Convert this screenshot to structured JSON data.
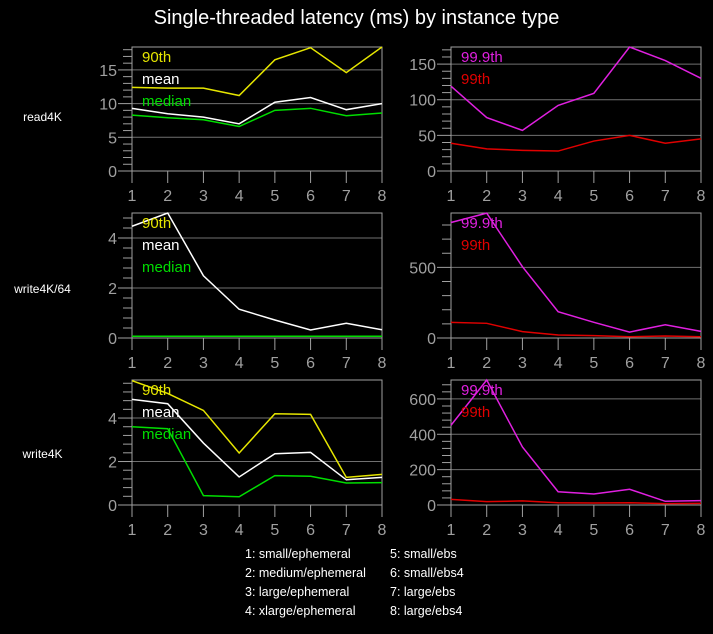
{
  "title": "Single-threaded latency (ms) by instance type",
  "colors": {
    "90th": "#e6e600",
    "mean": "#ffffff",
    "median": "#00dd00",
    "99.9th": "#e020e0",
    "99th": "#e00000",
    "axis": "#a0a0a0",
    "grid": "#707070"
  },
  "instance_key": [
    "1: small/ephemeral",
    "2: medium/ephemeral",
    "3: large/ephemeral",
    "4: xlarge/ephemeral",
    "5: small/ebs",
    "6: small/ebs4",
    "7: large/ebs",
    "8: large/ebs4"
  ],
  "row_labels": [
    "read4K",
    "write4K/64",
    "write4K"
  ],
  "chart_data": [
    {
      "type": "line",
      "row": "read4K",
      "column": "left",
      "x": [
        1,
        2,
        3,
        4,
        5,
        6,
        7,
        8
      ],
      "ylim": [
        0,
        18.4
      ],
      "yticks": [
        0,
        5,
        10,
        15
      ],
      "yminor": 1,
      "series": [
        {
          "name": "90th",
          "values": [
            12.4,
            12.3,
            12.3,
            11.2,
            16.5,
            18.3,
            14.6,
            18.7
          ]
        },
        {
          "name": "mean",
          "values": [
            9.3,
            8.5,
            8.0,
            7.0,
            10.2,
            10.9,
            9.1,
            10.0
          ]
        },
        {
          "name": "median",
          "values": [
            8.3,
            7.9,
            7.6,
            6.6,
            9.0,
            9.3,
            8.2,
            8.6
          ]
        }
      ]
    },
    {
      "type": "line",
      "row": "read4K",
      "column": "right",
      "x": [
        1,
        2,
        3,
        4,
        5,
        6,
        7,
        8
      ],
      "ylim": [
        0,
        174
      ],
      "yticks": [
        0,
        50,
        100,
        150
      ],
      "yminor": 10,
      "series": [
        {
          "name": "99.9th",
          "values": [
            119,
            75,
            57,
            92,
            109,
            176,
            155,
            130
          ]
        },
        {
          "name": "99th",
          "values": [
            39,
            31,
            29,
            28,
            42,
            50,
            39,
            45
          ]
        }
      ]
    },
    {
      "type": "line",
      "row": "write4K/64",
      "column": "left",
      "x": [
        1,
        2,
        3,
        4,
        5,
        6,
        7,
        8
      ],
      "ylim": [
        0,
        5.0
      ],
      "yticks": [
        0,
        2,
        4
      ],
      "yminor": 0.4,
      "series": [
        {
          "name": "90th",
          "values": [
            0.07,
            0.07,
            0.07,
            0.07,
            0.07,
            0.07,
            0.07,
            0.07
          ]
        },
        {
          "name": "mean",
          "values": [
            4.47,
            5.04,
            2.49,
            1.15,
            0.72,
            0.32,
            0.59,
            0.33
          ]
        },
        {
          "name": "median",
          "values": [
            0.07,
            0.07,
            0.07,
            0.07,
            0.07,
            0.07,
            0.07,
            0.07
          ]
        }
      ]
    },
    {
      "type": "line",
      "row": "write4K/64",
      "column": "right",
      "x": [
        1,
        2,
        3,
        4,
        5,
        6,
        7,
        8
      ],
      "ylim": [
        0,
        885
      ],
      "yticks": [
        0,
        500
      ],
      "yminor": 100,
      "series": [
        {
          "name": "99.9th",
          "values": [
            818,
            884,
            505,
            186,
            111,
            42,
            94,
            47
          ]
        },
        {
          "name": "99th",
          "values": [
            111,
            104,
            45,
            21,
            17,
            9,
            14,
            9
          ]
        }
      ]
    },
    {
      "type": "line",
      "row": "write4K",
      "column": "left",
      "x": [
        1,
        2,
        3,
        4,
        5,
        6,
        7,
        8
      ],
      "ylim": [
        0,
        5.75
      ],
      "yticks": [
        0,
        2,
        4
      ],
      "yminor": 0.4,
      "series": [
        {
          "name": "90th",
          "values": [
            5.72,
            5.13,
            4.35,
            2.39,
            4.2,
            4.17,
            1.27,
            1.41
          ]
        },
        {
          "name": "mean",
          "values": [
            4.86,
            4.66,
            2.85,
            1.29,
            2.36,
            2.42,
            1.16,
            1.27
          ]
        },
        {
          "name": "median",
          "values": [
            3.6,
            3.51,
            0.43,
            0.38,
            1.35,
            1.32,
            1.01,
            1.03
          ]
        }
      ]
    },
    {
      "type": "line",
      "row": "write4K",
      "column": "right",
      "x": [
        1,
        2,
        3,
        4,
        5,
        6,
        7,
        8
      ],
      "ylim": [
        0,
        707
      ],
      "yticks": [
        0,
        200,
        400,
        600
      ],
      "yminor": 40,
      "series": [
        {
          "name": "99.9th",
          "values": [
            451,
            707,
            328,
            75,
            62,
            89,
            21,
            25
          ]
        },
        {
          "name": "99th",
          "values": [
            32,
            19,
            23,
            13,
            11,
            13,
            8,
            9
          ]
        }
      ]
    }
  ]
}
